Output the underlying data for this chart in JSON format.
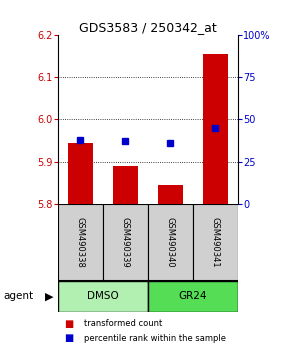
{
  "title": "GDS3583 / 250342_at",
  "samples": [
    "GSM490338",
    "GSM490339",
    "GSM490340",
    "GSM490341"
  ],
  "red_values": [
    5.945,
    5.89,
    5.845,
    6.155
  ],
  "blue_percentile": [
    38,
    37,
    36,
    45
  ],
  "ylim_left": [
    5.8,
    6.2
  ],
  "ylim_right": [
    0,
    100
  ],
  "yticks_left": [
    5.8,
    5.9,
    6.0,
    6.1,
    6.2
  ],
  "yticks_right": [
    0,
    25,
    50,
    75,
    100
  ],
  "ytick_right_labels": [
    "0",
    "25",
    "50",
    "75",
    "100%"
  ],
  "bar_color": "#cc0000",
  "dot_color": "#0000cc",
  "dmso_color": "#b2f0b2",
  "gr24_color": "#55dd55",
  "sample_box_color": "#d0d0d0",
  "agent_label": "agent",
  "legend_red": "transformed count",
  "legend_blue": "percentile rank within the sample",
  "figsize": [
    2.9,
    3.54
  ],
  "dpi": 100
}
